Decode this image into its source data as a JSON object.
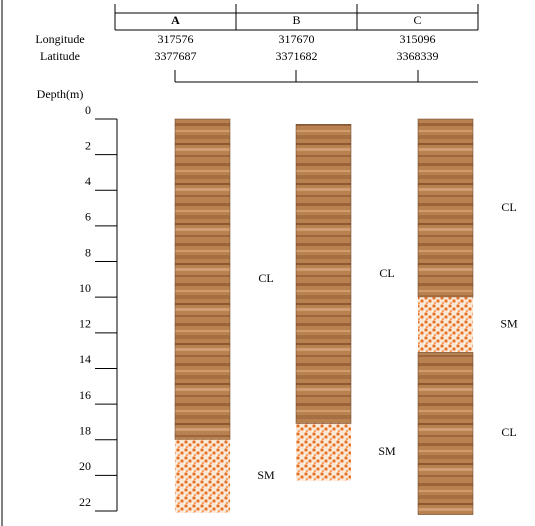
{
  "header": {
    "row_labels": [
      "Longitude",
      "Latitude"
    ]
  },
  "depth_axis": {
    "title": "Depth(m)",
    "lim": [
      0,
      22
    ],
    "ticks": [
      0,
      2,
      4,
      6,
      8,
      10,
      12,
      14,
      16,
      18,
      20,
      22
    ]
  },
  "boreholes": [
    {
      "name": "A",
      "longitude": 317576,
      "latitude": 3377687,
      "layers": [
        {
          "soil": "CL",
          "top": 0,
          "bottom": 18
        },
        {
          "soil": "SM",
          "top": 18,
          "bottom": 22.1
        }
      ]
    },
    {
      "name": "B",
      "longitude": 317670,
      "latitude": 3371682,
      "layers": [
        {
          "soil": "CL",
          "top": 0.3,
          "bottom": 17.1
        },
        {
          "soil": "SM",
          "top": 17.1,
          "bottom": 20.3
        }
      ]
    },
    {
      "name": "C",
      "longitude": 315096,
      "latitude": 3368339,
      "layers": [
        {
          "soil": "CL",
          "top": 0,
          "bottom": 10
        },
        {
          "soil": "SM",
          "top": 10,
          "bottom": 13.1
        },
        {
          "soil": "CL",
          "top": 13.1,
          "bottom": 22.2
        }
      ]
    }
  ]
}
